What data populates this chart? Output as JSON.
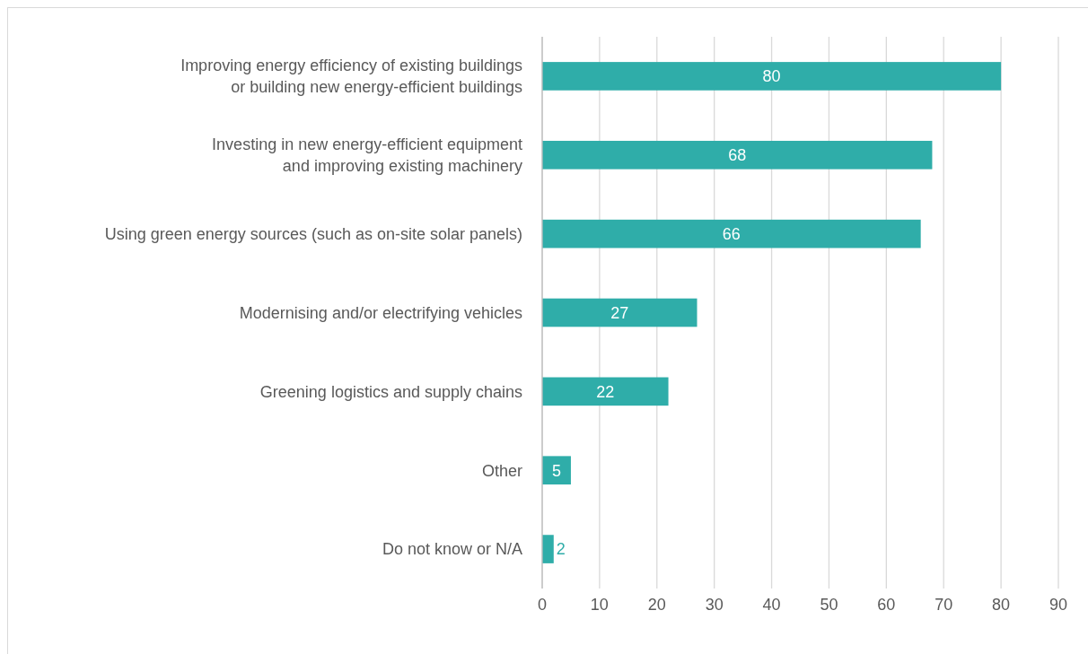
{
  "chart_data": {
    "type": "bar",
    "orientation": "horizontal",
    "categories": [
      "Improving energy efficiency of existing buildings\nor building new energy-efficient buildings",
      "Investing in new energy-efficient equipment\nand improving existing machinery",
      "Using green energy sources (such as on-site solar panels)",
      "Modernising and/or electrifying vehicles",
      "Greening logistics and supply chains",
      "Other",
      "Do not know or N/A"
    ],
    "values": [
      80,
      68,
      66,
      27,
      22,
      5,
      2
    ],
    "color": "#2fada9",
    "xlim": [
      0,
      90
    ],
    "xticks": [
      0,
      10,
      20,
      30,
      40,
      50,
      60,
      70,
      80,
      90
    ],
    "grid": "x",
    "data_labels": true
  }
}
